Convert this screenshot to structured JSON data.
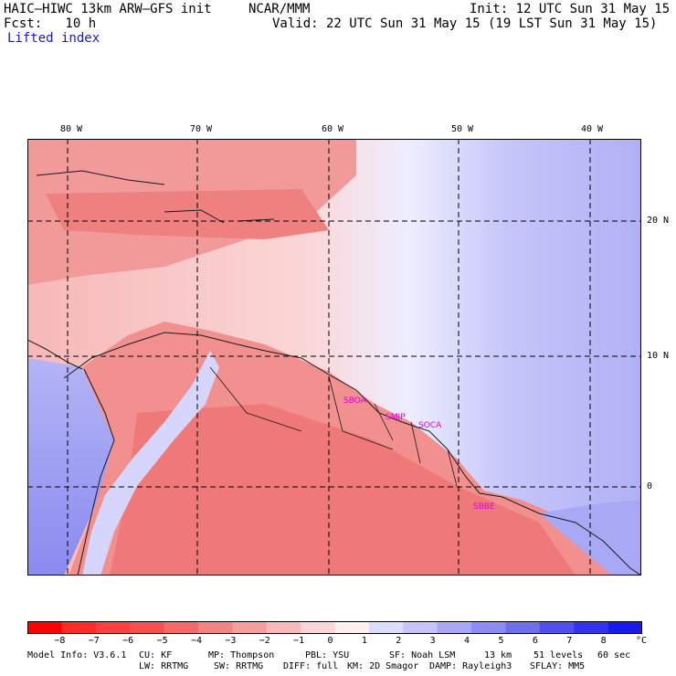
{
  "header": {
    "model_title": "HAIC–HIWC 13km ARW–GFS init",
    "org": "NCAR/MMM",
    "init": "Init: 12 UTC Sun 31 May 15",
    "fcst": "Fcst:   10 h",
    "valid": "Valid: 22 UTC Sun 31 May 15 (19 LST Sun 31 May 15)",
    "field": "Lifted index"
  },
  "map": {
    "lon_labels": [
      "80 W",
      "70 W",
      "60 W",
      "50 W",
      "40 W"
    ],
    "lat_labels": [
      "20 N",
      "10 N",
      "0"
    ],
    "stations": [
      {
        "id": "SBOA",
        "color": "#e000e0"
      },
      {
        "id": "SMJP",
        "color": "#e000e0"
      },
      {
        "id": "SOCA",
        "color": "#e000e0"
      },
      {
        "id": "SBBE",
        "color": "#e000e0"
      }
    ]
  },
  "colorbar": {
    "unit": "°C",
    "labels": [
      "−8",
      "−7",
      "−6",
      "−5",
      "−4",
      "−3",
      "−2",
      "−1",
      "0",
      "1",
      "2",
      "3",
      "4",
      "5",
      "6",
      "7",
      "8"
    ],
    "colors": [
      "#ff0000",
      "#ff2a2a",
      "#ff4040",
      "#f85050",
      "#f56a6a",
      "#f48484",
      "#f59e9e",
      "#f8baba",
      "#fbd6d6",
      "#fff0f0",
      "#dcdcff",
      "#c4c4fa",
      "#a8a8f5",
      "#8c8cf2",
      "#6e6eef",
      "#5050ee",
      "#3434ee",
      "#1a1af0"
    ]
  },
  "footer": {
    "line1": [
      {
        "key": "info",
        "text": "Model Info: V3.6.1"
      },
      {
        "key": "cu",
        "text": "CU: KF"
      },
      {
        "key": "mp",
        "text": "MP: Thompson"
      },
      {
        "key": "pbl",
        "text": "PBL: YSU"
      },
      {
        "key": "sf",
        "text": "SF: Noah LSM"
      },
      {
        "key": "res",
        "text": "13 km"
      },
      {
        "key": "levels",
        "text": "51 levels"
      },
      {
        "key": "dt",
        "text": "60 sec"
      }
    ],
    "line2": [
      {
        "key": "lw",
        "text": "LW: RRTMG"
      },
      {
        "key": "sw",
        "text": "SW: RRTMG"
      },
      {
        "key": "diff",
        "text": "DIFF: full"
      },
      {
        "key": "km",
        "text": "KM: 2D Smagor"
      },
      {
        "key": "damp",
        "text": "DAMP: Rayleigh3"
      },
      {
        "key": "sflay",
        "text": "SFLAY: MM5"
      }
    ]
  }
}
